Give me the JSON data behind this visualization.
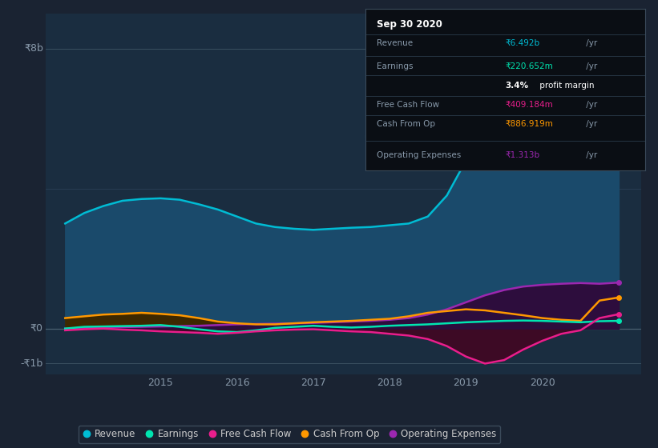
{
  "background_color": "#1a2332",
  "plot_bg_color": "#1a2d40",
  "grid_color": "#2a3f55",
  "ylabel_8b": "₹8b",
  "ylabel_0": "₹0",
  "ylabel_neg1b": "-₹1b",
  "x_labels": [
    "2015",
    "2016",
    "2017",
    "2018",
    "2019",
    "2020"
  ],
  "x_range": [
    2013.5,
    2021.3
  ],
  "y_range": [
    -1300000000.0,
    9000000000.0
  ],
  "y_ticks": [
    8000000000.0,
    4000000000.0,
    0,
    -1000000000.0
  ],
  "series": {
    "Revenue": {
      "color": "#00bcd4",
      "fill_color": "#1a4a6b",
      "x": [
        2013.75,
        2014.0,
        2014.25,
        2014.5,
        2014.75,
        2015.0,
        2015.25,
        2015.5,
        2015.75,
        2016.0,
        2016.25,
        2016.5,
        2016.75,
        2017.0,
        2017.25,
        2017.5,
        2017.75,
        2018.0,
        2018.25,
        2018.5,
        2018.75,
        2019.0,
        2019.25,
        2019.5,
        2019.75,
        2020.0,
        2020.25,
        2020.5,
        2020.75,
        2021.0
      ],
      "y": [
        3000000000.0,
        3300000000.0,
        3500000000.0,
        3650000000.0,
        3700000000.0,
        3720000000.0,
        3680000000.0,
        3550000000.0,
        3400000000.0,
        3200000000.0,
        3000000000.0,
        2900000000.0,
        2850000000.0,
        2820000000.0,
        2850000000.0,
        2880000000.0,
        2900000000.0,
        2950000000.0,
        3000000000.0,
        3200000000.0,
        3800000000.0,
        4800000000.0,
        6000000000.0,
        7000000000.0,
        7600000000.0,
        7800000000.0,
        7500000000.0,
        7000000000.0,
        6500000000.0,
        6490000000.0
      ]
    },
    "Earnings": {
      "color": "#00e5b0",
      "fill_color": "#0d3d2e",
      "x": [
        2013.75,
        2014.0,
        2014.25,
        2014.5,
        2014.75,
        2015.0,
        2015.25,
        2015.5,
        2015.75,
        2016.0,
        2016.25,
        2016.5,
        2016.75,
        2017.0,
        2017.25,
        2017.5,
        2017.75,
        2018.0,
        2018.25,
        2018.5,
        2018.75,
        2019.0,
        2019.25,
        2019.5,
        2019.75,
        2020.0,
        2020.25,
        2020.5,
        2020.75,
        2021.0
      ],
      "y": [
        0.0,
        50000000.0,
        60000000.0,
        70000000.0,
        80000000.0,
        100000000.0,
        50000000.0,
        -20000000.0,
        -80000000.0,
        -100000000.0,
        -50000000.0,
        20000000.0,
        50000000.0,
        80000000.0,
        50000000.0,
        30000000.0,
        50000000.0,
        80000000.0,
        100000000.0,
        120000000.0,
        150000000.0,
        180000000.0,
        200000000.0,
        220000000.0,
        230000000.0,
        220000000.0,
        200000000.0,
        180000000.0,
        210000000.0,
        220000000.0
      ]
    },
    "FreeCashFlow": {
      "color": "#e91e8c",
      "fill_color": "#3d0a25",
      "x": [
        2013.75,
        2014.0,
        2014.25,
        2014.5,
        2014.75,
        2015.0,
        2015.25,
        2015.5,
        2015.75,
        2016.0,
        2016.25,
        2016.5,
        2016.75,
        2017.0,
        2017.25,
        2017.5,
        2017.75,
        2018.0,
        2018.25,
        2018.5,
        2018.75,
        2019.0,
        2019.25,
        2019.5,
        2019.75,
        2020.0,
        2020.25,
        2020.5,
        2020.75,
        2021.0
      ],
      "y": [
        -50000000.0,
        -20000000.0,
        0.0,
        -30000000.0,
        -50000000.0,
        -80000000.0,
        -100000000.0,
        -120000000.0,
        -150000000.0,
        -120000000.0,
        -80000000.0,
        -50000000.0,
        -30000000.0,
        -20000000.0,
        -50000000.0,
        -80000000.0,
        -100000000.0,
        -150000000.0,
        -200000000.0,
        -300000000.0,
        -500000000.0,
        -800000000.0,
        -1000000000.0,
        -900000000.0,
        -600000000.0,
        -350000000.0,
        -150000000.0,
        -50000000.0,
        300000000.0,
        410000000.0
      ]
    },
    "CashFromOp": {
      "color": "#ff9800",
      "fill_color": "#3d2800",
      "x": [
        2013.75,
        2014.0,
        2014.25,
        2014.5,
        2014.75,
        2015.0,
        2015.25,
        2015.5,
        2015.75,
        2016.0,
        2016.25,
        2016.5,
        2016.75,
        2017.0,
        2017.25,
        2017.5,
        2017.75,
        2018.0,
        2018.25,
        2018.5,
        2018.75,
        2019.0,
        2019.25,
        2019.5,
        2019.75,
        2020.0,
        2020.25,
        2020.5,
        2020.75,
        2021.0
      ],
      "y": [
        300000000.0,
        350000000.0,
        400000000.0,
        420000000.0,
        450000000.0,
        420000000.0,
        380000000.0,
        300000000.0,
        200000000.0,
        150000000.0,
        120000000.0,
        120000000.0,
        150000000.0,
        180000000.0,
        200000000.0,
        220000000.0,
        250000000.0,
        280000000.0,
        350000000.0,
        450000000.0,
        500000000.0,
        550000000.0,
        520000000.0,
        450000000.0,
        380000000.0,
        300000000.0,
        250000000.0,
        220000000.0,
        800000000.0,
        887000000.0
      ]
    },
    "OperatingExpenses": {
      "color": "#9c27b0",
      "fill_color": "#2d0d3d",
      "x": [
        2013.75,
        2014.0,
        2014.25,
        2014.5,
        2014.75,
        2015.0,
        2015.25,
        2015.5,
        2015.75,
        2016.0,
        2016.25,
        2016.5,
        2016.75,
        2017.0,
        2017.25,
        2017.5,
        2017.75,
        2018.0,
        2018.25,
        2018.5,
        2018.75,
        2019.0,
        2019.25,
        2019.5,
        2019.75,
        2020.0,
        2020.25,
        2020.5,
        2020.75,
        2021.0
      ],
      "y": [
        0.0,
        20000000.0,
        30000000.0,
        40000000.0,
        50000000.0,
        60000000.0,
        70000000.0,
        80000000.0,
        100000000.0,
        120000000.0,
        130000000.0,
        140000000.0,
        150000000.0,
        160000000.0,
        180000000.0,
        200000000.0,
        220000000.0,
        250000000.0,
        300000000.0,
        400000000.0,
        550000000.0,
        750000000.0,
        950000000.0,
        1100000000.0,
        1200000000.0,
        1250000000.0,
        1280000000.0,
        1300000000.0,
        1280000000.0,
        1313000000.0
      ]
    }
  },
  "info_box": {
    "date": "Sep 30 2020",
    "revenue_label": "Revenue",
    "revenue_val": "₹6.492b",
    "revenue_unit": " /yr",
    "earnings_label": "Earnings",
    "earnings_val": "₹220.652m",
    "earnings_unit": " /yr",
    "profit_pct": "3.4%",
    "profit_suffix": " profit margin",
    "fcf_label": "Free Cash Flow",
    "fcf_val": "₹409.184m",
    "fcf_unit": " /yr",
    "cashop_label": "Cash From Op",
    "cashop_val": "₹886.919m",
    "cashop_unit": " /yr",
    "opex_label": "Operating Expenses",
    "opex_val": "₹1.313b",
    "opex_unit": " /yr"
  },
  "legend": [
    {
      "label": "Revenue",
      "color": "#00bcd4"
    },
    {
      "label": "Earnings",
      "color": "#00e5b0"
    },
    {
      "label": "Free Cash Flow",
      "color": "#e91e8c"
    },
    {
      "label": "Cash From Op",
      "color": "#ff9800"
    },
    {
      "label": "Operating Expenses",
      "color": "#9c27b0"
    }
  ]
}
